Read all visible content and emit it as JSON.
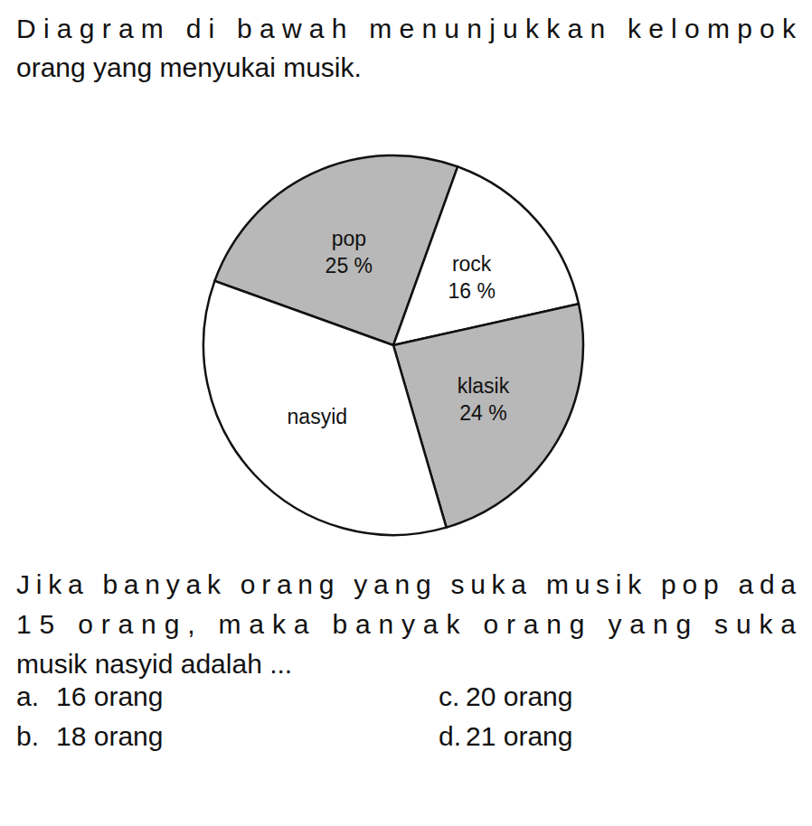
{
  "intro": [
    "Diagram di bawah menunjukkan kelompok",
    "orang yang menyukai musik."
  ],
  "chart_data": {
    "type": "pie",
    "categories": [
      "pop",
      "rock",
      "klasik",
      "nasyid"
    ],
    "values": [
      25,
      16,
      24,
      35
    ],
    "value_labels": [
      "25 %",
      "16 %",
      "24 %",
      null
    ],
    "colors": [
      "#b8b8b8",
      "#ffffff",
      "#b8b8b8",
      "#ffffff"
    ],
    "data_labels": true
  },
  "question": [
    "Jika banyak orang yang suka musik pop ada",
    "15 orang, maka banyak orang yang suka",
    "musik nasyid adalah ..."
  ],
  "options": [
    {
      "letter": "a.",
      "text": "16 orang"
    },
    {
      "letter": "b.",
      "text": "18 orang"
    },
    {
      "letter": "c.",
      "text": "20 orang"
    },
    {
      "letter": "d.",
      "text": "21 orang"
    }
  ]
}
